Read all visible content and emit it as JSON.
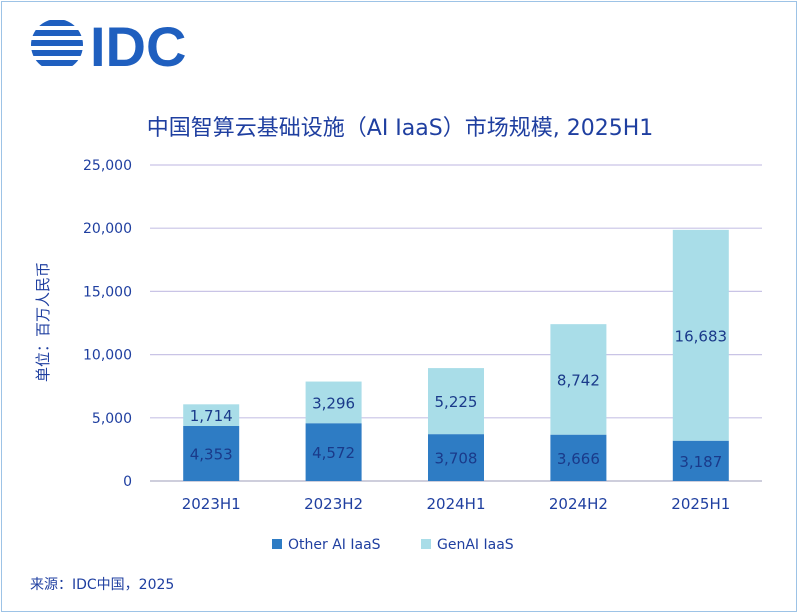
{
  "brand": {
    "logo_text": "IDC",
    "logo_color": "#1f5fbf"
  },
  "colors": {
    "other_ai_iaas": "#2e7cc4",
    "genai_iaas": "#a9dde8",
    "text": "#1f3fa0",
    "grid": "#c9c4e6"
  },
  "source": "来源：IDC中国，2025",
  "chart_data": {
    "type": "bar",
    "stacked": true,
    "title": "中国智算云基础设施（AI IaaS）市场规模, 2025H1",
    "ylabel": "单位：百万人民币",
    "xlabel": "",
    "ylim": [
      0,
      25000
    ],
    "yticks": [
      "0",
      "5,000",
      "10,000",
      "15,000",
      "20,000",
      "25,000"
    ],
    "categories": [
      "2023H1",
      "2023H2",
      "2024H1",
      "2024H2",
      "2025H1"
    ],
    "series": [
      {
        "name": "Other AI IaaS",
        "values": [
          4353,
          4572,
          3708,
          3666,
          3187
        ],
        "labels": [
          "4,353",
          "4,572",
          "3,708",
          "3,666",
          "3,187"
        ]
      },
      {
        "name": "GenAI IaaS",
        "values": [
          1714,
          3296,
          5225,
          8742,
          16683
        ],
        "labels": [
          "1,714",
          "3,296",
          "5,225",
          "8,742",
          "16,683"
        ]
      }
    ],
    "grid": true,
    "legend": "bottom"
  }
}
